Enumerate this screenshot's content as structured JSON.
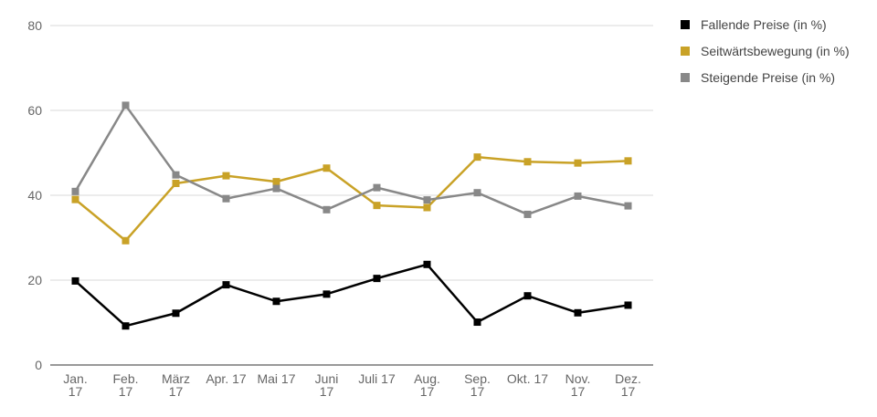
{
  "chart_data": {
    "type": "line",
    "title": "",
    "xlabel": "",
    "ylabel": "",
    "ylim": [
      0,
      80
    ],
    "yticks": [
      0,
      20,
      40,
      60,
      80
    ],
    "grid": "horizontal",
    "legend_position": "top-right",
    "categories": [
      [
        "Jan.",
        "17"
      ],
      [
        "Feb.",
        "17"
      ],
      [
        "März",
        "17"
      ],
      [
        "Apr. 17"
      ],
      [
        "Mai 17"
      ],
      [
        "Juni",
        "17"
      ],
      [
        "Juli 17"
      ],
      [
        "Aug.",
        "17"
      ],
      [
        "Sep.",
        "17"
      ],
      [
        "Okt. 17"
      ],
      [
        "Nov.",
        "17"
      ],
      [
        "Dez.",
        "17"
      ]
    ],
    "series": [
      {
        "name": "Fallende Preise (in %)",
        "color": "#000000",
        "values": [
          19.8,
          9.2,
          12.2,
          18.9,
          15.0,
          16.7,
          20.4,
          23.7,
          10.1,
          16.3,
          12.3,
          14.1
        ]
      },
      {
        "name": "Seitwärtsbewegung (in %)",
        "color": "#c9a227",
        "values": [
          39.0,
          29.3,
          42.8,
          44.6,
          43.2,
          46.4,
          37.6,
          37.1,
          49.0,
          47.9,
          47.6,
          48.1
        ]
      },
      {
        "name": "Steigende Preise (in %)",
        "color": "#888888",
        "values": [
          40.9,
          61.2,
          44.8,
          39.2,
          41.6,
          36.6,
          41.8,
          38.9,
          40.6,
          35.5,
          39.8,
          37.5
        ]
      }
    ]
  }
}
